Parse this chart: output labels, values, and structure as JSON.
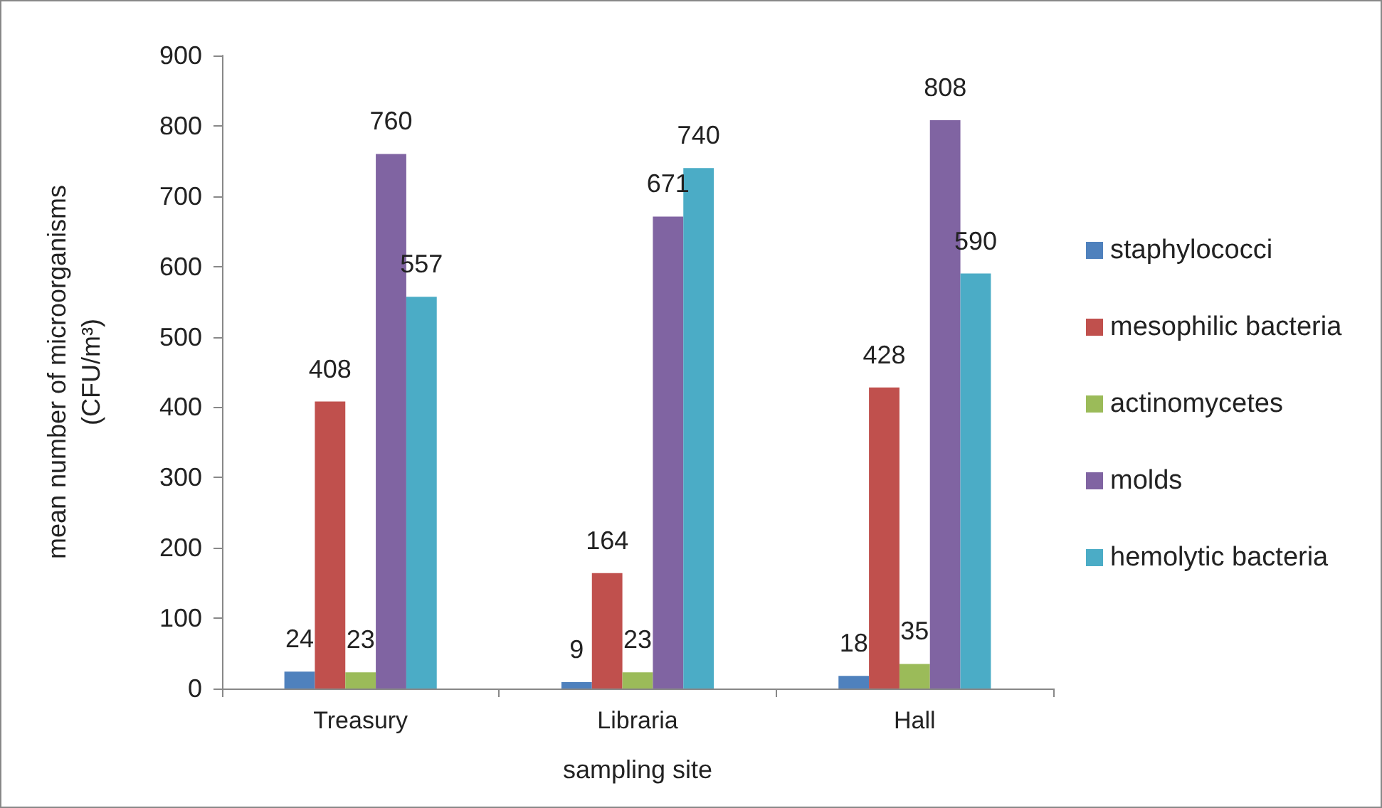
{
  "chart_data": {
    "type": "bar",
    "xlabel": "sampling site",
    "ylabel": "mean number of microorganisms\n(CFU/m³)",
    "categories": [
      "Treasury",
      "Libraria",
      "Hall"
    ],
    "series": [
      {
        "name": "staphylococci",
        "color": "#4f81bd",
        "values": [
          24,
          9,
          18
        ]
      },
      {
        "name": "mesophilic bacteria",
        "color": "#c0504d",
        "values": [
          408,
          164,
          428
        ]
      },
      {
        "name": "actinomycetes",
        "color": "#9bbb59",
        "values": [
          23,
          23,
          35
        ]
      },
      {
        "name": "molds",
        "color": "#8064a2",
        "values": [
          760,
          671,
          808
        ]
      },
      {
        "name": "hemolytic bacteria",
        "color": "#4bacc6",
        "values": [
          557,
          740,
          590
        ]
      }
    ],
    "ylim": [
      0,
      900
    ],
    "yticks": [
      0,
      100,
      200,
      300,
      400,
      500,
      600,
      700,
      800,
      900
    ],
    "grid": false,
    "legend": "right",
    "data_labels": true
  }
}
